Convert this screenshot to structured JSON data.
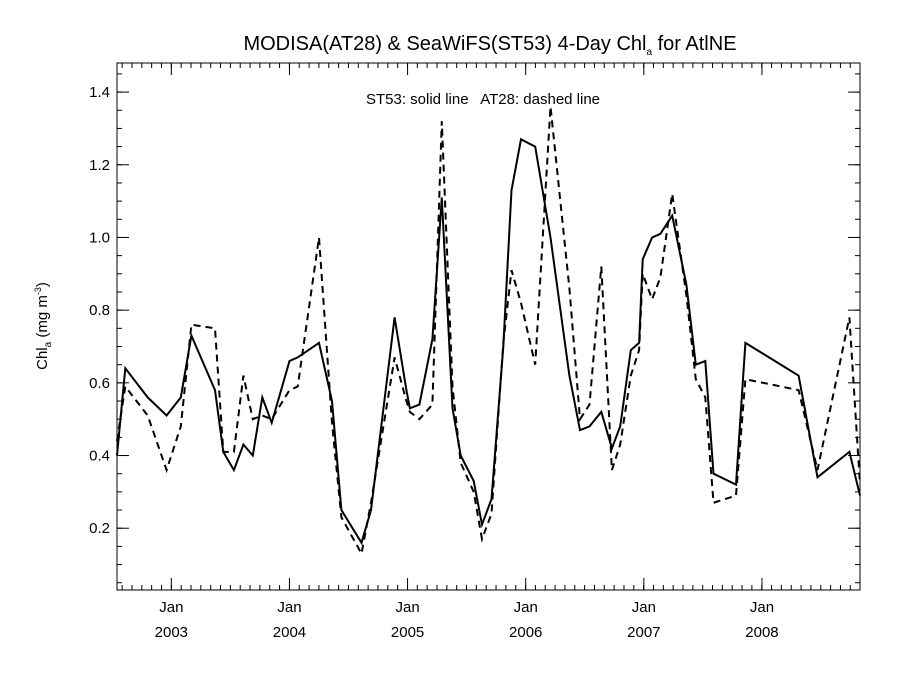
{
  "chart_data": {
    "type": "line",
    "title_main": "MODISA(AT28) & SeaWiFS(ST53) 4-Day Chl",
    "title_sub": "a",
    "title_end": " for AtlNE",
    "annotation": "ST53: solid line   AT28: dashed line",
    "ylabel_main": "Chl",
    "ylabel_sub": "a",
    "ylabel_unit": " (mg m",
    "ylabel_sup": "-3",
    "ylabel_close": ")",
    "xlim": [
      2002.54,
      2008.83
    ],
    "ylim": [
      0.03,
      1.48
    ],
    "y_ticks": [
      0.2,
      0.4,
      0.6,
      0.8,
      1.0,
      1.2,
      1.4
    ],
    "y_tick_labels": [
      "0.2",
      "0.4",
      "0.6",
      "0.8",
      "1.0",
      "1.2",
      "1.4"
    ],
    "y_minor_step": 0.05,
    "x_ticks": [
      {
        "x": 2003.0,
        "month": "Jan",
        "year": "2003"
      },
      {
        "x": 2004.0,
        "month": "Jan",
        "year": "2004"
      },
      {
        "x": 2005.0,
        "month": "Jan",
        "year": "2005"
      },
      {
        "x": 2006.0,
        "month": "Jan",
        "year": "2006"
      },
      {
        "x": 2007.0,
        "month": "Jan",
        "year": "2007"
      },
      {
        "x": 2008.0,
        "month": "Jan",
        "year": "2008"
      }
    ],
    "x_minor_step": 0.0833,
    "grid": false,
    "series": [
      {
        "style": "solid",
        "points": [
          [
            2002.54,
            0.4
          ],
          [
            2002.61,
            0.64
          ],
          [
            2002.8,
            0.56
          ],
          [
            2002.96,
            0.51
          ],
          [
            2003.08,
            0.56
          ],
          [
            2003.17,
            0.73
          ],
          [
            2003.37,
            0.58
          ],
          [
            2003.44,
            0.41
          ],
          [
            2003.53,
            0.36
          ],
          [
            2003.61,
            0.43
          ],
          [
            2003.69,
            0.4
          ],
          [
            2003.77,
            0.56
          ],
          [
            2003.85,
            0.49
          ],
          [
            2004.0,
            0.66
          ],
          [
            2004.07,
            0.67
          ],
          [
            2004.25,
            0.71
          ],
          [
            2004.36,
            0.55
          ],
          [
            2004.44,
            0.25
          ],
          [
            2004.61,
            0.16
          ],
          [
            2004.69,
            0.25
          ],
          [
            2004.89,
            0.78
          ],
          [
            2004.99,
            0.58
          ],
          [
            2005.02,
            0.53
          ],
          [
            2005.1,
            0.54
          ],
          [
            2005.21,
            0.72
          ],
          [
            2005.29,
            1.11
          ],
          [
            2005.38,
            0.53
          ],
          [
            2005.45,
            0.4
          ],
          [
            2005.56,
            0.33
          ],
          [
            2005.63,
            0.21
          ],
          [
            2005.71,
            0.28
          ],
          [
            2005.81,
            0.7
          ],
          [
            2005.88,
            1.13
          ],
          [
            2005.96,
            1.27
          ],
          [
            2006.08,
            1.25
          ],
          [
            2006.21,
            1.0
          ],
          [
            2006.37,
            0.62
          ],
          [
            2006.46,
            0.47
          ],
          [
            2006.54,
            0.48
          ],
          [
            2006.64,
            0.52
          ],
          [
            2006.73,
            0.42
          ],
          [
            2006.8,
            0.48
          ],
          [
            2006.89,
            0.69
          ],
          [
            2006.96,
            0.71
          ],
          [
            2006.99,
            0.94
          ],
          [
            2007.07,
            1.0
          ],
          [
            2007.14,
            1.01
          ],
          [
            2007.24,
            1.06
          ],
          [
            2007.36,
            0.87
          ],
          [
            2007.44,
            0.65
          ],
          [
            2007.52,
            0.66
          ],
          [
            2007.59,
            0.35
          ],
          [
            2007.78,
            0.32
          ],
          [
            2007.86,
            0.71
          ],
          [
            2008.31,
            0.62
          ],
          [
            2008.47,
            0.34
          ],
          [
            2008.74,
            0.41
          ],
          [
            2008.83,
            0.29
          ]
        ]
      },
      {
        "style": "dashed",
        "points": [
          [
            2002.54,
            0.44
          ],
          [
            2002.61,
            0.59
          ],
          [
            2002.8,
            0.51
          ],
          [
            2002.96,
            0.36
          ],
          [
            2003.08,
            0.48
          ],
          [
            2003.17,
            0.76
          ],
          [
            2003.37,
            0.75
          ],
          [
            2003.44,
            0.41
          ],
          [
            2003.53,
            0.41
          ],
          [
            2003.61,
            0.62
          ],
          [
            2003.69,
            0.5
          ],
          [
            2003.77,
            0.51
          ],
          [
            2003.85,
            0.5
          ],
          [
            2004.0,
            0.58
          ],
          [
            2004.07,
            0.59
          ],
          [
            2004.25,
            1.0
          ],
          [
            2004.36,
            0.49
          ],
          [
            2004.44,
            0.23
          ],
          [
            2004.61,
            0.13
          ],
          [
            2004.69,
            0.27
          ],
          [
            2004.89,
            0.67
          ],
          [
            2004.99,
            0.55
          ],
          [
            2005.02,
            0.52
          ],
          [
            2005.1,
            0.5
          ],
          [
            2005.21,
            0.54
          ],
          [
            2005.29,
            1.32
          ],
          [
            2005.38,
            0.59
          ],
          [
            2005.45,
            0.38
          ],
          [
            2005.56,
            0.3
          ],
          [
            2005.63,
            0.17
          ],
          [
            2005.71,
            0.24
          ],
          [
            2005.81,
            0.71
          ],
          [
            2005.88,
            0.91
          ],
          [
            2005.96,
            0.82
          ],
          [
            2006.08,
            0.65
          ],
          [
            2006.21,
            1.36
          ],
          [
            2006.37,
            0.86
          ],
          [
            2006.46,
            0.5
          ],
          [
            2006.54,
            0.54
          ],
          [
            2006.64,
            0.92
          ],
          [
            2006.73,
            0.36
          ],
          [
            2006.8,
            0.43
          ],
          [
            2006.89,
            0.62
          ],
          [
            2006.96,
            0.69
          ],
          [
            2006.99,
            0.9
          ],
          [
            2007.07,
            0.83
          ],
          [
            2007.14,
            0.89
          ],
          [
            2007.24,
            1.12
          ],
          [
            2007.36,
            0.84
          ],
          [
            2007.44,
            0.61
          ],
          [
            2007.52,
            0.56
          ],
          [
            2007.59,
            0.27
          ],
          [
            2007.78,
            0.29
          ],
          [
            2007.86,
            0.61
          ],
          [
            2008.31,
            0.58
          ],
          [
            2008.47,
            0.36
          ],
          [
            2008.74,
            0.78
          ],
          [
            2008.83,
            0.32
          ]
        ]
      }
    ]
  }
}
